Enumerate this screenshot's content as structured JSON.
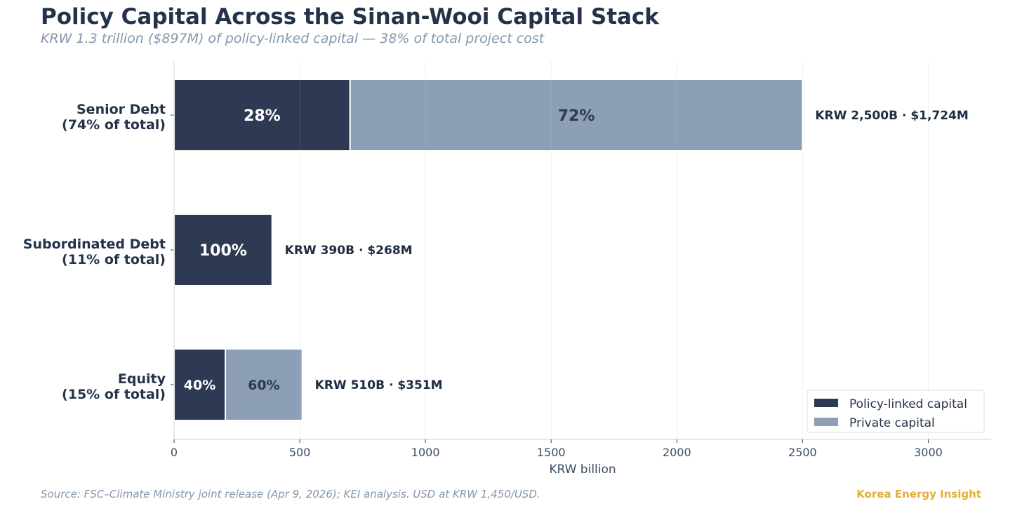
{
  "title": "Policy Capital Across the Sinan-Wooi Capital Stack",
  "subtitle": "KRW 1.3 trillion ($897M) of policy-linked capital — 38% of total project cost",
  "footer": {
    "source": "Source: FSC–Climate Ministry joint release (Apr 9, 2026); KEI analysis. USD at KRW 1,450/USD.",
    "brand": "Korea Energy Insight"
  },
  "colors": {
    "policy": "#2e3a53",
    "private": "#8c9fb6",
    "brand": "#e5ad3a"
  },
  "chart_data": {
    "type": "bar",
    "orientation": "horizontal",
    "stacked": true,
    "xlabel": "KRW billion",
    "xlim": [
      0,
      3250
    ],
    "xticks": [
      0,
      500,
      1000,
      1500,
      2000,
      2500,
      3000
    ],
    "grid": "vertical",
    "legend_position": "bottom-right",
    "categories": [
      [
        "Senior Debt",
        "(74% of total)"
      ],
      [
        "Subordinated Debt",
        "(11% of total)"
      ],
      [
        "Equity",
        "(15% of total)"
      ]
    ],
    "series": [
      {
        "name": "Policy-linked capital",
        "values": [
          700,
          390,
          204
        ],
        "labels": [
          "28%",
          "100%",
          "40%"
        ]
      },
      {
        "name": "Private capital",
        "values": [
          1800,
          0,
          306
        ],
        "labels": [
          "72%",
          "",
          "60%"
        ]
      }
    ],
    "totals": [
      "KRW 2,500B  ·  $1,724M",
      "KRW 390B  ·  $268M",
      "KRW 510B  ·  $351M"
    ]
  }
}
